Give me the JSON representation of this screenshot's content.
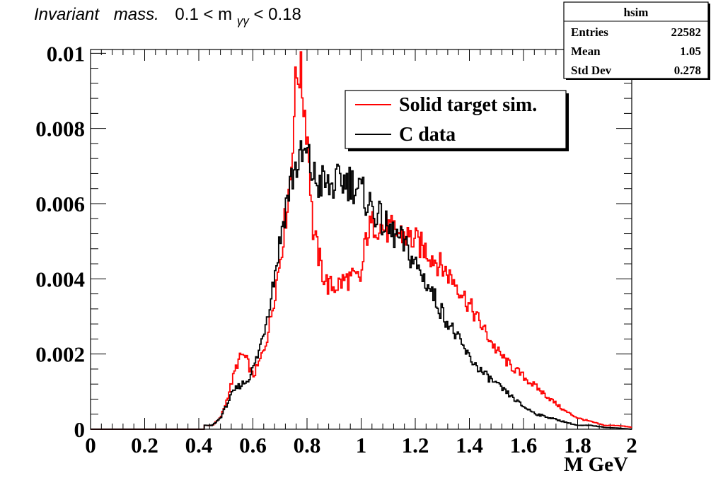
{
  "chart_data": {
    "type": "histogram",
    "title_parts": [
      "Invariant",
      "mass.",
      "0.1 < m",
      "γγ",
      " < 0.18"
    ],
    "xlabel": "M GeV",
    "ylabel": "",
    "xlim": [
      0,
      2
    ],
    "ylim": [
      0,
      0.0101
    ],
    "x_ticks": [
      "0",
      "0.2",
      "0.4",
      "0.6",
      "0.8",
      "1",
      "1.2",
      "1.4",
      "1.6",
      "1.8",
      "2"
    ],
    "y_ticks": [
      "0",
      "0.002",
      "0.004",
      "0.006",
      "0.008",
      "0.01"
    ],
    "grid": false,
    "legend": {
      "placement": "top-right",
      "entries": [
        "Solid target sim.",
        "C data"
      ]
    },
    "stats_box": {
      "title": "hsim",
      "rows": [
        {
          "label": "Entries",
          "value": "22582"
        },
        {
          "label": "Mean",
          "value": "1.05"
        },
        {
          "label": "Std Dev",
          "value": "0.278"
        }
      ]
    },
    "series": [
      {
        "name": "Solid target sim.",
        "color": "#ff0000",
        "x": [
          0.45,
          0.48,
          0.5,
          0.52,
          0.54,
          0.56,
          0.58,
          0.6,
          0.62,
          0.64,
          0.66,
          0.68,
          0.7,
          0.72,
          0.74,
          0.75,
          0.76,
          0.77,
          0.78,
          0.79,
          0.8,
          0.81,
          0.82,
          0.84,
          0.86,
          0.88,
          0.9,
          0.95,
          1.0,
          1.02,
          1.05,
          1.1,
          1.15,
          1.2,
          1.25,
          1.3,
          1.35,
          1.4,
          1.45,
          1.5,
          1.55,
          1.6,
          1.65,
          1.7,
          1.75,
          1.8,
          1.85,
          1.9,
          1.95,
          2.0
        ],
        "values": [
          0.0001,
          0.0003,
          0.0007,
          0.0012,
          0.0017,
          0.002,
          0.0018,
          0.0014,
          0.0017,
          0.0021,
          0.0027,
          0.0036,
          0.0045,
          0.0056,
          0.0068,
          0.0082,
          0.0093,
          0.0097,
          0.0092,
          0.0086,
          0.008,
          0.007,
          0.0054,
          0.0047,
          0.0041,
          0.0038,
          0.0038,
          0.004,
          0.004,
          0.0052,
          0.0055,
          0.0053,
          0.0052,
          0.005,
          0.0047,
          0.0043,
          0.0039,
          0.0033,
          0.0027,
          0.0021,
          0.0017,
          0.0014,
          0.0011,
          0.0008,
          0.0005,
          0.0003,
          0.0002,
          0.0001,
          0.0001,
          5e-05
        ]
      },
      {
        "name": "C data",
        "color": "#000000",
        "x": [
          0.45,
          0.48,
          0.5,
          0.52,
          0.54,
          0.56,
          0.58,
          0.6,
          0.62,
          0.64,
          0.66,
          0.68,
          0.7,
          0.72,
          0.74,
          0.76,
          0.78,
          0.8,
          0.82,
          0.84,
          0.86,
          0.88,
          0.9,
          0.93,
          0.96,
          1.0,
          1.03,
          1.06,
          1.1,
          1.15,
          1.2,
          1.25,
          1.3,
          1.35,
          1.4,
          1.45,
          1.5,
          1.55,
          1.6,
          1.65,
          1.7,
          1.75,
          1.8,
          1.85,
          1.9,
          1.95,
          2.0
        ],
        "values": [
          0.0001,
          0.0003,
          0.0006,
          0.0009,
          0.0011,
          0.0012,
          0.0013,
          0.0016,
          0.002,
          0.0026,
          0.0033,
          0.0041,
          0.005,
          0.0059,
          0.0066,
          0.007,
          0.0072,
          0.0073,
          0.0068,
          0.0065,
          0.0066,
          0.0064,
          0.0065,
          0.0066,
          0.0066,
          0.0063,
          0.006,
          0.0057,
          0.0053,
          0.005,
          0.0044,
          0.0038,
          0.0031,
          0.0025,
          0.0019,
          0.0015,
          0.0012,
          0.0009,
          0.0006,
          0.0004,
          0.0003,
          0.0002,
          0.0001,
          0.0001,
          5e-05,
          3e-05,
          0.0
        ]
      }
    ]
  }
}
